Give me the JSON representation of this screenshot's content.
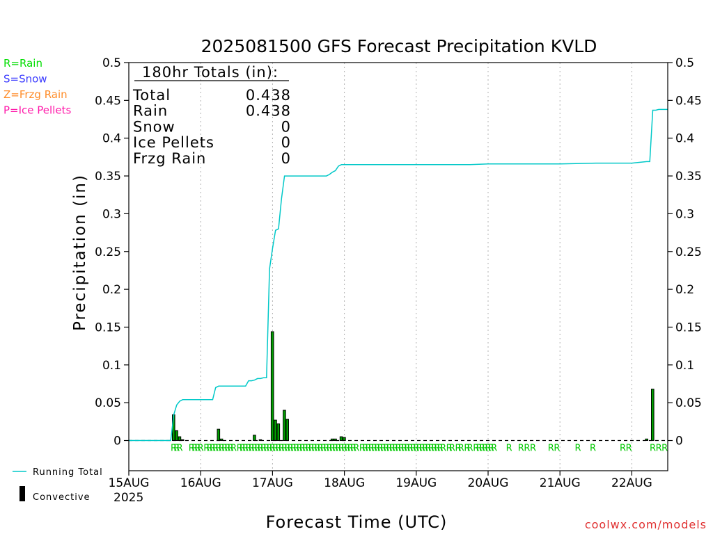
{
  "chart_data": {
    "type": "line",
    "title": "2025081500 GFS Forecast Precipitation KVLD",
    "xlabel": "Forecast Time (UTC)",
    "ylabel": "Precipitation (in)",
    "ylim": [
      -0.04,
      0.5
    ],
    "yticks": [
      0,
      0.05,
      0.1,
      0.15,
      0.2,
      0.25,
      0.3,
      0.35,
      0.4,
      0.45,
      0.5
    ],
    "ytick_labels": [
      "0",
      "0.05",
      "0.1",
      "0.15",
      "0.2",
      "0.25",
      "0.3",
      "0.35",
      "0.4",
      "0.45",
      "0.5"
    ],
    "xlim_hours": [
      0,
      180
    ],
    "x_ticks": [
      {
        "label": "15AUG",
        "hour": 0
      },
      {
        "label": "16AUG",
        "hour": 24
      },
      {
        "label": "17AUG",
        "hour": 48
      },
      {
        "label": "18AUG",
        "hour": 72
      },
      {
        "label": "19AUG",
        "hour": 96
      },
      {
        "label": "20AUG",
        "hour": 120
      },
      {
        "label": "21AUG",
        "hour": 144
      },
      {
        "label": "22AUG",
        "hour": 168
      }
    ],
    "year_label": "2025",
    "grid": "vertical dotted at each day",
    "series": [
      {
        "name": "Running Total",
        "color": "#00c8c8",
        "hours": [
          0,
          14,
          15,
          16,
          17,
          18,
          19,
          20,
          21,
          22,
          23,
          24,
          25,
          26,
          27,
          28,
          29,
          30,
          31,
          32,
          33,
          34,
          35,
          36,
          37,
          38,
          39,
          40,
          41,
          42,
          43,
          44,
          45,
          46,
          47,
          48,
          49,
          50,
          51,
          52,
          53,
          54,
          55,
          60,
          66,
          67,
          68,
          69,
          70,
          71,
          72,
          78,
          84,
          96,
          108,
          114,
          120,
          132,
          144,
          156,
          168,
          173,
          174,
          175,
          176,
          177,
          178,
          180
        ],
        "values": [
          0,
          0,
          0.034,
          0.047,
          0.052,
          0.054,
          0.054,
          0.054,
          0.054,
          0.054,
          0.054,
          0.054,
          0.054,
          0.054,
          0.054,
          0.054,
          0.07,
          0.072,
          0.072,
          0.072,
          0.072,
          0.072,
          0.072,
          0.072,
          0.072,
          0.072,
          0.072,
          0.079,
          0.079,
          0.08,
          0.082,
          0.082,
          0.083,
          0.083,
          0.227,
          0.254,
          0.278,
          0.28,
          0.32,
          0.35,
          0.35,
          0.35,
          0.35,
          0.35,
          0.35,
          0.352,
          0.355,
          0.357,
          0.363,
          0.365,
          0.365,
          0.365,
          0.365,
          0.365,
          0.365,
          0.365,
          0.366,
          0.366,
          0.366,
          0.367,
          0.367,
          0.369,
          0.369,
          0.437,
          0.437,
          0.438,
          0.438,
          0.438
        ]
      }
    ],
    "convective_bars": {
      "name": "Convective",
      "color": "#000000",
      "fill_color": "#00a000",
      "bars": [
        {
          "hour": 15,
          "value": 0.034
        },
        {
          "hour": 16,
          "value": 0.013
        },
        {
          "hour": 17,
          "value": 0.005
        },
        {
          "hour": 18,
          "value": 0.001
        },
        {
          "hour": 30,
          "value": 0.015
        },
        {
          "hour": 31,
          "value": 0.002
        },
        {
          "hour": 42,
          "value": 0.007
        },
        {
          "hour": 44,
          "value": 0.001
        },
        {
          "hour": 48,
          "value": 0.144
        },
        {
          "hour": 49,
          "value": 0.027
        },
        {
          "hour": 50,
          "value": 0.022
        },
        {
          "hour": 52,
          "value": 0.04
        },
        {
          "hour": 53,
          "value": 0.028
        },
        {
          "hour": 68,
          "value": 0.002
        },
        {
          "hour": 69,
          "value": 0.002
        },
        {
          "hour": 71,
          "value": 0.005
        },
        {
          "hour": 72,
          "value": 0.004
        },
        {
          "hour": 173,
          "value": 0.002
        },
        {
          "hour": 175,
          "value": 0.068
        }
      ]
    },
    "precip_type_markers": {
      "label": "R",
      "color": "#00c800",
      "hours": [
        15,
        16,
        17,
        21,
        22,
        23,
        24,
        26,
        27,
        28,
        29,
        30,
        31,
        32,
        33,
        34,
        35,
        37,
        38,
        39,
        40,
        41,
        42,
        43,
        44,
        45,
        46,
        47,
        48,
        49,
        50,
        51,
        52,
        53,
        54,
        55,
        56,
        57,
        58,
        59,
        60,
        61,
        62,
        63,
        64,
        65,
        66,
        67,
        68,
        69,
        70,
        71,
        72,
        73,
        74,
        75,
        76,
        78,
        79,
        80,
        81,
        82,
        83,
        84,
        85,
        86,
        87,
        88,
        89,
        90,
        91,
        92,
        93,
        94,
        95,
        96,
        97,
        98,
        99,
        100,
        101,
        102,
        103,
        104,
        105,
        107,
        108,
        110,
        111,
        113,
        114,
        116,
        117,
        118,
        119,
        120,
        121,
        122,
        127,
        131,
        133,
        135,
        141,
        143,
        150,
        155,
        165,
        167,
        175,
        177,
        179
      ]
    },
    "legend_top": [
      {
        "text": "R=Rain",
        "color": "#00dd00"
      },
      {
        "text": "S=Snow",
        "color": "#3a3aff"
      },
      {
        "text": "Z=Frzg Rain",
        "color": "#ff8c28"
      },
      {
        "text": "P=Ice Pellets",
        "color": "#ff1aaa"
      }
    ],
    "legend_bottom": [
      {
        "text": "Running Total",
        "kind": "line",
        "color": "#00c8c8"
      },
      {
        "text": "Convective",
        "kind": "bar",
        "color": "#000000"
      }
    ],
    "totals_box": {
      "header": "180hr Totals (in):",
      "rows": [
        {
          "label": "Total",
          "value": "0.438"
        },
        {
          "label": "Rain",
          "value": "0.438"
        },
        {
          "label": "Snow",
          "value": "0"
        },
        {
          "label": "Ice Pellets",
          "value": "0"
        },
        {
          "label": "Frzg Rain",
          "value": "0"
        }
      ]
    },
    "watermark": "coolwx.com/models"
  }
}
